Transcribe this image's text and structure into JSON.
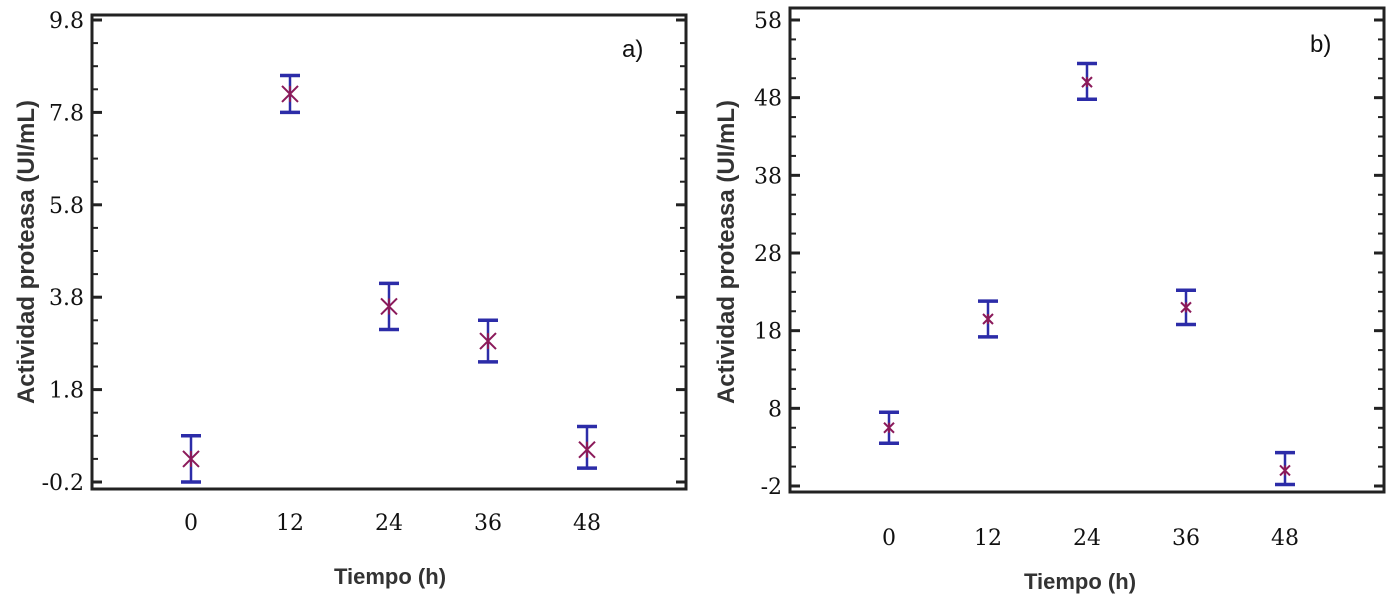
{
  "chart_data": [
    {
      "type": "scatter",
      "panel_label": "a)",
      "title": "",
      "xlabel": "Tiempo (h)",
      "ylabel": "Actividad proteasa (UI/mL)",
      "x_ticks": [
        "0",
        "12",
        "24",
        "36",
        "48"
      ],
      "y_ticks": [
        "-0.2",
        "1.8",
        "3.8",
        "5.8",
        "7.8",
        "9.8"
      ],
      "ylim": [
        -0.2,
        9.8
      ],
      "xlim": [
        -12,
        60
      ],
      "grid": false,
      "marker_color": "#8b1a5a",
      "errorbar_color": "#2c2ca8",
      "series": [
        {
          "x": [
            0,
            12,
            24,
            36,
            48
          ],
          "y": [
            0.3,
            8.2,
            3.6,
            2.85,
            0.5
          ],
          "y_low": [
            -0.2,
            7.8,
            3.1,
            2.4,
            0.1
          ],
          "y_high": [
            0.8,
            8.6,
            4.1,
            3.3,
            1.0
          ]
        }
      ]
    },
    {
      "type": "scatter",
      "panel_label": "b)",
      "title": "",
      "xlabel": "Tiempo (h)",
      "ylabel": "Actividad proteasa (UI/mL)",
      "x_ticks": [
        "0",
        "12",
        "24",
        "36",
        "48"
      ],
      "y_ticks": [
        "-2",
        "8",
        "18",
        "28",
        "38",
        "48",
        "58"
      ],
      "ylim": [
        -2,
        58
      ],
      "xlim": [
        -12,
        60
      ],
      "grid": false,
      "marker_color": "#8b1a5a",
      "errorbar_color": "#2c2ca8",
      "series": [
        {
          "x": [
            0,
            12,
            24,
            36,
            48
          ],
          "y": [
            5.5,
            19.5,
            50,
            21,
            0
          ],
          "y_low": [
            3.5,
            17.2,
            47.8,
            18.8,
            -1.8
          ],
          "y_high": [
            7.5,
            21.8,
            52.4,
            23.2,
            2.3
          ]
        }
      ]
    }
  ]
}
